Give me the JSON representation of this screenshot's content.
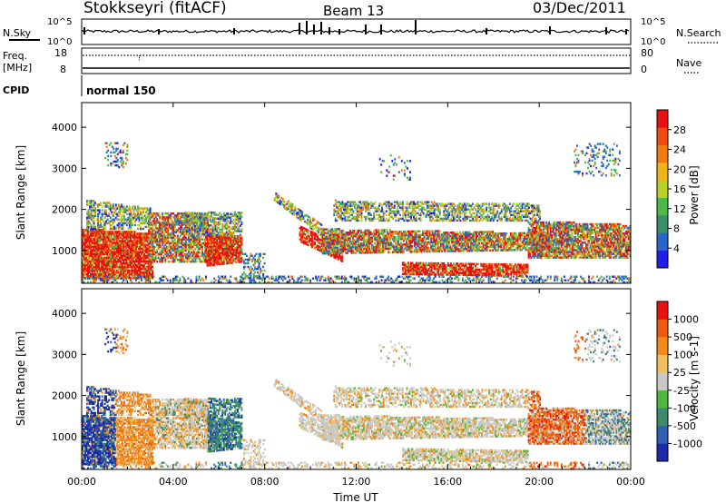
{
  "header": {
    "station": "Stokkseyri (fitACF)",
    "beam": "Beam 13",
    "date": "03/Dec/2011"
  },
  "top_panels": {
    "nsky_label": "N.Sky",
    "nsky_tick_top": "10^5",
    "nsky_tick_bottom": "10^0",
    "nsearch_label": "N.Search",
    "nsearch_tick_top": "10^5",
    "nsearch_tick_bottom": "10^0",
    "freq_label": "Freq.",
    "freq_unit": "[MHz]",
    "freq_tick_top": "18",
    "freq_tick_bottom": "8",
    "nave_label": "Nave",
    "nave_tick_top": "80",
    "nave_tick_bottom": "0",
    "cpid_label": "CPID",
    "cpid_value": "normal 150"
  },
  "chart_data": [
    {
      "type": "heatmap",
      "name": "power",
      "ylabel": "Slant Range [km]",
      "ylim": [
        200,
        4600
      ],
      "yticks": [
        "1000",
        "2000",
        "3000",
        "4000"
      ],
      "xlim": [
        0,
        24
      ],
      "colorbar_label": "Power [dB]",
      "colorbar_ticks": [
        "4",
        "8",
        "12",
        "16",
        "20",
        "24",
        "28"
      ],
      "colorbar_colors": [
        "#1f1fe6",
        "#2a66c8",
        "#3a8f6a",
        "#4fb84a",
        "#b9cf2a",
        "#f0b31a",
        "#f07a10",
        "#ef4a12",
        "#e81010"
      ],
      "colorbar_range": [
        0,
        32
      ]
    },
    {
      "type": "heatmap",
      "name": "velocity",
      "ylabel": "Slant Range [km]",
      "ylim": [
        200,
        4600
      ],
      "yticks": [
        "1000",
        "2000",
        "3000",
        "4000"
      ],
      "xlim": [
        0,
        24
      ],
      "xlabel": "Time UT",
      "xticks": [
        "00:00",
        "04:00",
        "08:00",
        "12:00",
        "16:00",
        "20:00",
        "00:00"
      ],
      "colorbar_label": "Velocity [m s-1]",
      "colorbar_ticks": [
        "1000",
        "500",
        "100",
        "25",
        "-25",
        "-100",
        "-500",
        "-1000"
      ],
      "colorbar_colors": [
        "#1a2aa8",
        "#2f5fb0",
        "#3f8a6a",
        "#4fb63f",
        "#c8c8c4",
        "#f0c060",
        "#f08a18",
        "#ef5a12",
        "#e81010"
      ]
    }
  ]
}
